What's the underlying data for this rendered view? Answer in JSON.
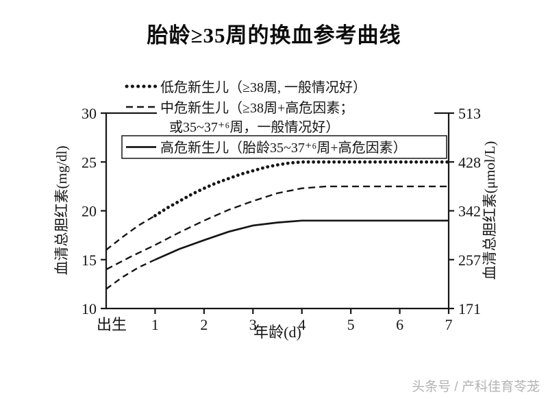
{
  "title": "胎龄≥35周的换血参考曲线",
  "watermark": "头条号 / 产科佳育苓茏",
  "chart_data": {
    "type": "line",
    "title": "胎龄≥35周的换血参考曲线",
    "xlabel": "年龄(d)",
    "ylabel_left": "血清总胆红素(mg/dl)",
    "ylabel_right": "血清总胆红素(μmol/L)",
    "xlim": [
      0,
      7
    ],
    "ylim": [
      10,
      30
    ],
    "x_tick_values": [
      0,
      1,
      2,
      3,
      4,
      5,
      6,
      7
    ],
    "x_tick_labels": [
      "出生",
      "1",
      "2",
      "3",
      "4",
      "5",
      "6",
      "7"
    ],
    "y_ticks_left": [
      10,
      15,
      20,
      25,
      30
    ],
    "y_ticks_right": [
      171,
      257,
      342,
      428,
      513
    ],
    "grid": false,
    "legend_position": "top-left",
    "line_color": "#161616",
    "series": [
      {
        "name": "低危新生儿（≥38周, 一般情况好）",
        "style": "dotted",
        "lead_dashed": [
          [
            0,
            16
          ],
          [
            0.33,
            17.3
          ],
          [
            0.66,
            18.5
          ],
          [
            1,
            19.5
          ]
        ],
        "points": [
          [
            1,
            19.5
          ],
          [
            1.25,
            20.3
          ],
          [
            1.5,
            21.0
          ],
          [
            1.75,
            21.7
          ],
          [
            2,
            22.3
          ],
          [
            2.25,
            22.85
          ],
          [
            2.5,
            23.3
          ],
          [
            2.75,
            23.75
          ],
          [
            3,
            24.1
          ],
          [
            3.25,
            24.45
          ],
          [
            3.5,
            24.7
          ],
          [
            3.75,
            24.9
          ],
          [
            4,
            25
          ],
          [
            5,
            25
          ],
          [
            6,
            25
          ],
          [
            7,
            25
          ]
        ]
      },
      {
        "name": "中危新生儿（≥38周+高危因素；或35~37⁺⁶周，一般情况好）",
        "name_line1": "中危新生儿（≥38周+高危因素；",
        "name_line2": "或35~37⁺⁶周，一般情况好）",
        "style": "dashed",
        "lead_dashed": [],
        "points": [
          [
            0,
            14
          ],
          [
            0.5,
            15.3
          ],
          [
            1,
            16.5
          ],
          [
            1.5,
            17.8
          ],
          [
            2,
            19
          ],
          [
            2.5,
            20.1
          ],
          [
            3,
            21
          ],
          [
            3.5,
            21.8
          ],
          [
            4,
            22.3
          ],
          [
            4.5,
            22.5
          ],
          [
            5,
            22.5
          ],
          [
            6,
            22.5
          ],
          [
            7,
            22.5
          ]
        ]
      },
      {
        "name": "高危新生儿（胎龄35~37⁺⁶周+高危因素）",
        "style": "solid",
        "lead_dashed": [
          [
            0,
            12
          ],
          [
            0.33,
            13.2
          ],
          [
            0.66,
            14.2
          ],
          [
            1,
            15
          ]
        ],
        "points": [
          [
            1,
            15
          ],
          [
            1.5,
            16.1
          ],
          [
            2,
            17
          ],
          [
            2.5,
            17.85
          ],
          [
            3,
            18.5
          ],
          [
            3.5,
            18.8
          ],
          [
            4,
            19
          ],
          [
            5,
            19
          ],
          [
            6,
            19
          ],
          [
            7,
            19
          ]
        ]
      }
    ]
  }
}
